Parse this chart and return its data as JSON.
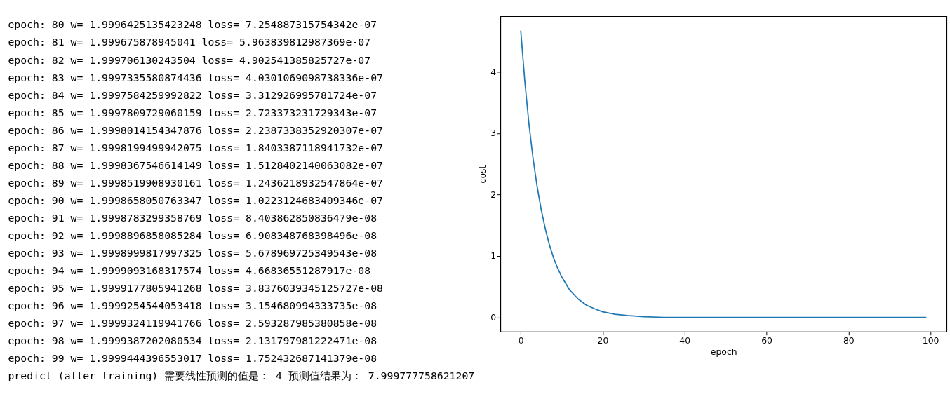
{
  "chart_data": {
    "type": "line",
    "xlabel": "epoch",
    "ylabel": "cost",
    "x": [
      0,
      1,
      2,
      3,
      4,
      5,
      6,
      7,
      8,
      9,
      10,
      12,
      14,
      16,
      18,
      20,
      23,
      26,
      30,
      35,
      40,
      50,
      60,
      70,
      80,
      90,
      99
    ],
    "series": [
      {
        "color": "#1f77b4",
        "values": [
          4.67,
          3.84,
          3.15,
          2.59,
          2.13,
          1.75,
          1.44,
          1.18,
          0.97,
          0.8,
          0.66,
          0.44,
          0.3,
          0.2,
          0.14,
          0.09,
          0.05,
          0.03,
          0.01,
          0,
          0,
          0,
          0,
          0,
          0,
          0,
          0
        ]
      }
    ],
    "xlim": [
      -4.95,
      103.95
    ],
    "ylim": [
      -0.2335,
      4.9035
    ],
    "xticks": [
      0,
      20,
      40,
      60,
      80,
      100
    ],
    "yticks": [
      0,
      1,
      2,
      3,
      4
    ],
    "grid": false,
    "marker": "none",
    "line_style": "solid",
    "annotations": [
      "epoch: 80 w= 1.9996425135423248 loss= 7.254887315754342e-07",
      "epoch: 81 w= 1.999675878945041 loss= 5.963839812987369e-07",
      "epoch: 82 w= 1.999706130243504 loss= 4.902541385825727e-07",
      "epoch: 83 w= 1.9997335580874436 loss= 4.0301069098738336e-07",
      "epoch: 84 w= 1.9997584259992822 loss= 3.312926995781724e-07",
      "epoch: 85 w= 1.9997809729060159 loss= 2.723373231729343e-07",
      "epoch: 86 w= 1.9998014154347876 loss= 2.2387338352920307e-07",
      "epoch: 87 w= 1.9998199499942075 loss= 1.8403387118941732e-07",
      "epoch: 88 w= 1.9998367546614149 loss= 1.5128402140063082e-07",
      "epoch: 89 w= 1.9998519908930161 loss= 1.2436218932547864e-07",
      "epoch: 90 w= 1.9998658050763347 loss= 1.0223124683409346e-07",
      "epoch: 91 w= 1.9998783299358769 loss= 8.403862850836479e-08",
      "epoch: 92 w= 1.9998896858085284 loss= 6.908348768398496e-08",
      "epoch: 93 w= 1.9998999817997325 loss= 5.678969725349543e-08",
      "epoch: 94 w= 1.9999093168317574 loss= 4.66836551287917e-08",
      "epoch: 95 w= 1.9999177805941268 loss= 3.8376039345125727e-08",
      "epoch: 96 w= 1.9999254544053418 loss= 3.154680994333735e-08",
      "epoch: 97 w= 1.9999324119941766 loss= 2.593287985380858e-08",
      "epoch: 98 w= 1.9999387202080534 loss= 2.131797981222471e-08",
      "epoch: 99 w= 1.9999444396553017 loss= 1.752432687141379e-08",
      "predict (after training) 需要线性预测的值是： 4 预测值结果为： 7.999777758621207"
    ]
  }
}
